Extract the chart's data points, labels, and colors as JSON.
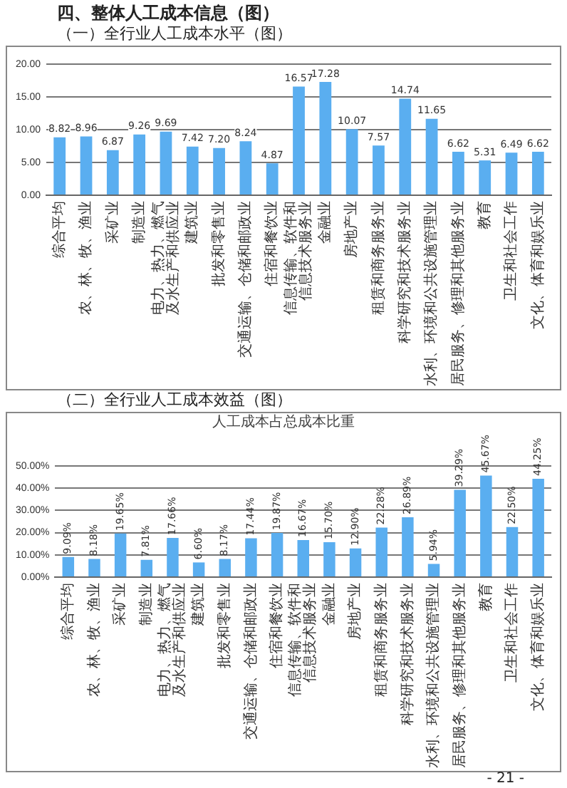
{
  "chart_data": [
    {
      "type": "bar",
      "title": "（一）全行业人工成本水平（图）",
      "annotations": [
        "四、整体人工成本信息（图）"
      ],
      "categories": [
        "综合平均",
        "农、林、牧、渔业",
        "采矿业",
        "制造业",
        "电力、热力、燃气及水生产和供应业",
        "建筑业",
        "批发和零售业",
        "交通运输、仓储和邮政业",
        "住宿和餐饮业",
        "信息传输、软件和信息技术服务业",
        "金融业",
        "房地产业",
        "租赁和商务服务业",
        "科学研究和技术服务业",
        "水利、环境和公共设施管理业",
        "居民服务、修理和其他服务业",
        "教育",
        "卫生和社会工作",
        "文化、体育和娱乐业"
      ],
      "values": [
        8.82,
        8.96,
        6.87,
        9.26,
        9.69,
        7.42,
        7.2,
        8.24,
        4.87,
        16.57,
        17.28,
        10.07,
        7.57,
        14.74,
        11.65,
        6.62,
        5.31,
        6.49,
        6.62
      ],
      "value_labels": [
        "8.82",
        "8.96",
        "6.87",
        "9.26",
        "9.69",
        "7.42",
        "7.20",
        "8.24",
        "4.87",
        "16.57",
        "17.28",
        "10.07",
        "7.57",
        "14.74",
        "11.65",
        "6.62",
        "5.31",
        "6.49",
        "6.62"
      ],
      "color": "#5aaef0",
      "ylim": [
        0,
        20
      ],
      "yticks": [
        {
          "value": 0,
          "label": "0.00"
        },
        {
          "value": 5,
          "label": "5.00"
        },
        {
          "value": 10,
          "label": "10.00"
        },
        {
          "value": 15,
          "label": "15.00"
        },
        {
          "value": 20,
          "label": "20.00"
        }
      ],
      "grid": "y",
      "legend": false
    },
    {
      "type": "bar",
      "title": "人工成本占总成本比重",
      "annotations": [
        "（二）全行业人工成本效益（图）",
        "- 21 -"
      ],
      "categories": [
        "综合平均",
        "农、林、牧、渔业",
        "采矿业",
        "制造业",
        "电力、热力、燃气及水生产和供应业",
        "建筑业",
        "批发和零售业",
        "交通运输、仓储和邮政业",
        "住宿和餐饮业",
        "信息传输、软件和信息技术服务业",
        "金融业",
        "房地产业",
        "租赁和商务服务业",
        "科学研究和技术服务业",
        "水利、环境和公共设施管理业",
        "居民服务、修理和其他服务业",
        "教育",
        "卫生和社会工作",
        "文化、体育和娱乐业"
      ],
      "values": [
        9.09,
        8.18,
        19.65,
        7.81,
        17.66,
        6.6,
        8.17,
        17.44,
        19.87,
        16.67,
        15.7,
        12.9,
        22.28,
        26.89,
        5.94,
        39.29,
        45.67,
        22.5,
        44.25
      ],
      "value_labels": [
        "9.09%",
        "8.18%",
        "19.65%",
        "7.81%",
        "17.66%",
        "6.60%",
        "8.17%",
        "17.44%",
        "19.87%",
        "16.67%",
        "15.70%",
        "12.90%",
        "22.28%",
        "26.89%",
        "5.94%",
        "39.29%",
        "45.67%",
        "22.50%",
        "44.25%"
      ],
      "color": "#5aaef0",
      "ylim": [
        0,
        50
      ],
      "yticks": [
        {
          "value": 0,
          "label": "0.00%"
        },
        {
          "value": 10,
          "label": "10.00%"
        },
        {
          "value": 20,
          "label": "20.00%"
        },
        {
          "value": 30,
          "label": "30.00%"
        },
        {
          "value": 40,
          "label": "40.00%"
        },
        {
          "value": 50,
          "label": "50.00%"
        }
      ],
      "grid": "y",
      "legend": false
    }
  ]
}
